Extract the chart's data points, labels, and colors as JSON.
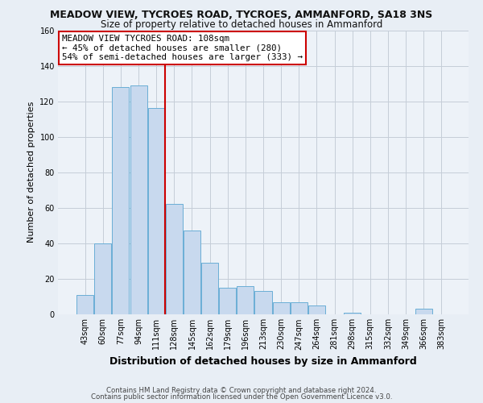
{
  "title": "MEADOW VIEW, TYCROES ROAD, TYCROES, AMMANFORD, SA18 3NS",
  "subtitle": "Size of property relative to detached houses in Ammanford",
  "xlabel": "Distribution of detached houses by size in Ammanford",
  "ylabel": "Number of detached properties",
  "bar_labels": [
    "43sqm",
    "60sqm",
    "77sqm",
    "94sqm",
    "111sqm",
    "128sqm",
    "145sqm",
    "162sqm",
    "179sqm",
    "196sqm",
    "213sqm",
    "230sqm",
    "247sqm",
    "264sqm",
    "281sqm",
    "298sqm",
    "315sqm",
    "332sqm",
    "349sqm",
    "366sqm",
    "383sqm"
  ],
  "bar_values": [
    11,
    40,
    128,
    129,
    116,
    62,
    47,
    29,
    15,
    16,
    13,
    7,
    7,
    5,
    0,
    1,
    0,
    0,
    0,
    3,
    0
  ],
  "bar_color": "#c8d9ee",
  "bar_edge_color": "#6aaed6",
  "vline_x_index": 4,
  "vline_color": "#cc0000",
  "annotation_title": "MEADOW VIEW TYCROES ROAD: 108sqm",
  "annotation_line1": "← 45% of detached houses are smaller (280)",
  "annotation_line2": "54% of semi-detached houses are larger (333) →",
  "annotation_box_facecolor": "#ffffff",
  "annotation_box_edgecolor": "#cc0000",
  "ylim": [
    0,
    160
  ],
  "yticks": [
    0,
    20,
    40,
    60,
    80,
    100,
    120,
    140,
    160
  ],
  "footer1": "Contains HM Land Registry data © Crown copyright and database right 2024.",
  "footer2": "Contains public sector information licensed under the Open Government Licence v3.0.",
  "bg_color": "#e8eef5",
  "plot_bg_color": "#edf2f8",
  "grid_color": "#c5cdd8",
  "title_fontsize": 9,
  "subtitle_fontsize": 8.5,
  "ylabel_fontsize": 8,
  "xlabel_fontsize": 9,
  "tick_fontsize": 7,
  "footer_fontsize": 6.2
}
